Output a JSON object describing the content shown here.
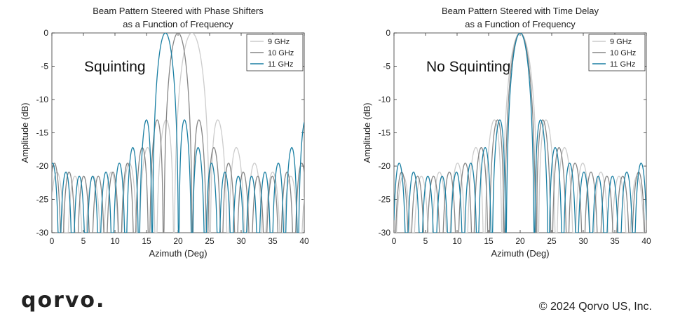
{
  "chart_data": [
    {
      "type": "line",
      "title_lines": [
        "Beam Pattern Steered with Phase Shifters",
        "as a Function of Frequency"
      ],
      "annotation": "Squinting",
      "xlabel": "Azimuth (Deg)",
      "ylabel": "Amplitude (dB)",
      "xlim": [
        0,
        40
      ],
      "ylim": [
        -30,
        0
      ],
      "xticks": [
        0,
        5,
        10,
        15,
        20,
        25,
        30,
        35,
        40
      ],
      "yticks": [
        0,
        -5,
        -10,
        -15,
        -20,
        -25,
        -30
      ],
      "legend_position": "top-right",
      "series": [
        {
          "name": "9 GHz",
          "color": "#cccccc",
          "main_lobe_center": 22.2,
          "main_lobe_null_halfwidth": 2.85
        },
        {
          "name": "10 GHz",
          "color": "#858585",
          "main_lobe_center": 20.0,
          "main_lobe_null_halfwidth": 2.3
        },
        {
          "name": "11 GHz",
          "color": "#1a7fa3",
          "main_lobe_center": 18.0,
          "main_lobe_null_halfwidth": 2.1
        }
      ]
    },
    {
      "type": "line",
      "title_lines": [
        "Beam Pattern Steered with Time Delay",
        "as a Function of Frequency"
      ],
      "annotation": "No Squinting",
      "xlabel": "Azimuth (Deg)",
      "ylabel": "Amplitude (dB)",
      "xlim": [
        0,
        40
      ],
      "ylim": [
        -30,
        0
      ],
      "xticks": [
        0,
        5,
        10,
        15,
        20,
        25,
        30,
        35,
        40
      ],
      "yticks": [
        0,
        -5,
        -10,
        -15,
        -20,
        -25,
        -30
      ],
      "legend_position": "top-right",
      "series": [
        {
          "name": "9 GHz",
          "color": "#cccccc",
          "main_lobe_center": 20.0,
          "main_lobe_null_halfwidth": 2.85
        },
        {
          "name": "10 GHz",
          "color": "#858585",
          "main_lobe_center": 20.0,
          "main_lobe_null_halfwidth": 2.5
        },
        {
          "name": "11 GHz",
          "color": "#1a7fa3",
          "main_lobe_center": 20.0,
          "main_lobe_null_halfwidth": 2.25
        }
      ]
    }
  ],
  "footer": {
    "logo_text": "qorvo.",
    "copyright": "© 2024 Qorvo US, Inc."
  }
}
